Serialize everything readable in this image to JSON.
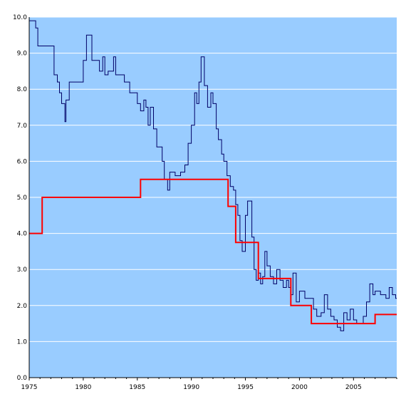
{
  "chart_data": {
    "type": "line",
    "title": "",
    "xlabel": "",
    "ylabel": "",
    "xlim": [
      1975,
      2009
    ],
    "ylim": [
      0,
      10
    ],
    "x_ticks": [
      1975,
      1980,
      1985,
      1990,
      1995,
      2000,
      2005
    ],
    "x_tick_labels": [
      "1975",
      "1980",
      "1985",
      "1990",
      "1995",
      "2000",
      "2005"
    ],
    "y_ticks": [
      0,
      1,
      2,
      3,
      4,
      5,
      6,
      7,
      8,
      9,
      10
    ],
    "y_tick_labels": [
      "0.0",
      "1.0",
      "2.0",
      "3.0",
      "4.0",
      "5.0",
      "6.0",
      "7.0",
      "8.0",
      "9.0",
      "10.0"
    ],
    "grid": "horizontal",
    "legend": "none",
    "colors": {
      "plot_background": "#99ccff",
      "gridline": "#ffffff",
      "axis": "#000000"
    },
    "series": [
      {
        "color": "#000066",
        "step": true,
        "x": [
          1975.0,
          1975.6,
          1975.8,
          1977.3,
          1977.6,
          1977.8,
          1978.0,
          1978.3,
          1978.4,
          1978.7,
          1979.5,
          1980.0,
          1980.3,
          1980.8,
          1981.0,
          1981.5,
          1981.8,
          1982.0,
          1982.3,
          1982.8,
          1983.0,
          1983.5,
          1983.8,
          1984.3,
          1984.7,
          1985.0,
          1985.3,
          1985.6,
          1985.8,
          1986.0,
          1986.2,
          1986.5,
          1986.8,
          1987.0,
          1987.3,
          1987.5,
          1987.8,
          1988.0,
          1988.5,
          1989.0,
          1989.4,
          1989.7,
          1990.0,
          1990.3,
          1990.5,
          1990.7,
          1990.9,
          1991.2,
          1991.5,
          1991.8,
          1992.0,
          1992.3,
          1992.5,
          1992.8,
          1993.0,
          1993.3,
          1993.6,
          1993.9,
          1994.1,
          1994.3,
          1994.5,
          1994.7,
          1995.0,
          1995.2,
          1995.4,
          1995.6,
          1995.8,
          1996.0,
          1996.2,
          1996.4,
          1996.6,
          1996.8,
          1997.0,
          1997.3,
          1997.6,
          1997.9,
          1998.2,
          1998.5,
          1998.8,
          1999.0,
          1999.2,
          1999.4,
          1999.7,
          2000.0,
          2000.5,
          2001.0,
          2001.3,
          2001.6,
          2002.0,
          2002.3,
          2002.6,
          2002.9,
          2003.2,
          2003.5,
          2003.8,
          2004.1,
          2004.4,
          2004.7,
          2005.0,
          2005.3,
          2005.6,
          2005.9,
          2006.2,
          2006.5,
          2006.8,
          2007.0,
          2007.5,
          2008.0,
          2008.3,
          2008.6,
          2008.9,
          2009.0
        ],
        "y": [
          9.9,
          9.7,
          9.2,
          8.4,
          8.2,
          7.9,
          7.6,
          7.1,
          7.7,
          8.2,
          8.2,
          8.8,
          9.5,
          8.8,
          8.8,
          8.5,
          8.9,
          8.4,
          8.5,
          8.9,
          8.4,
          8.4,
          8.2,
          7.9,
          7.9,
          7.6,
          7.4,
          7.7,
          7.5,
          7.0,
          7.5,
          6.9,
          6.4,
          6.4,
          6.0,
          5.5,
          5.2,
          5.7,
          5.6,
          5.7,
          5.9,
          6.5,
          7.0,
          7.9,
          7.6,
          8.2,
          8.9,
          8.1,
          7.5,
          7.9,
          7.6,
          6.9,
          6.6,
          6.2,
          6.0,
          5.6,
          5.3,
          5.2,
          4.8,
          4.5,
          3.8,
          3.5,
          4.5,
          4.9,
          4.9,
          3.9,
          3.0,
          2.7,
          2.9,
          2.6,
          2.8,
          3.5,
          3.1,
          2.8,
          2.6,
          3.0,
          2.7,
          2.5,
          2.7,
          2.5,
          2.3,
          2.9,
          2.1,
          2.4,
          2.2,
          2.2,
          1.9,
          1.7,
          1.8,
          2.3,
          1.9,
          1.7,
          1.6,
          1.4,
          1.3,
          1.8,
          1.6,
          1.9,
          1.6,
          1.5,
          1.5,
          1.7,
          2.1,
          2.6,
          2.3,
          2.4,
          2.3,
          2.2,
          2.5,
          2.3,
          2.2,
          2.2
        ]
      },
      {
        "color": "#ff0000",
        "step": true,
        "x": [
          1975.0,
          1976.2,
          1985.3,
          1993.4,
          1994.1,
          1996.2,
          1999.2,
          2001.1,
          2007.0,
          2009.0
        ],
        "y": [
          4.0,
          5.0,
          5.5,
          4.75,
          3.75,
          2.75,
          2.0,
          1.5,
          1.75,
          1.75
        ]
      }
    ]
  }
}
